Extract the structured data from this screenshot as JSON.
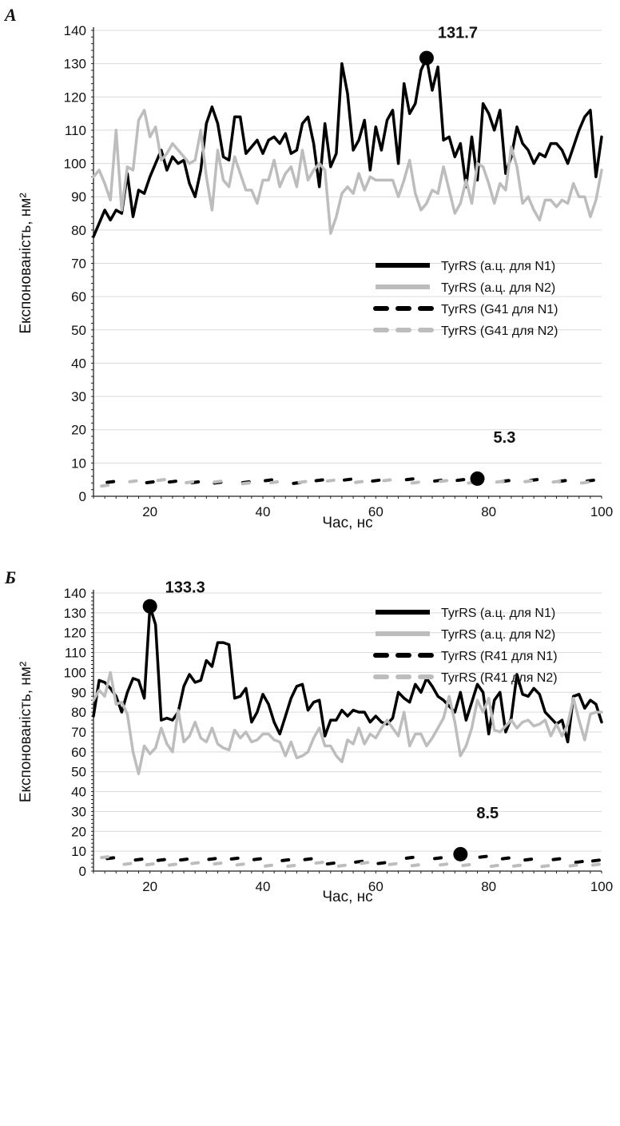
{
  "colors": {
    "n1": "#000000",
    "n2": "#bdbdbd",
    "grid": "#d9d9d9",
    "axis": "#222222"
  },
  "chart_data": [
    {
      "panel": "А",
      "type": "line",
      "xlabel": "Час, нс",
      "ylabel": "Експонованість, нм²",
      "xlim": [
        10,
        100
      ],
      "ylim": [
        0,
        140
      ],
      "xticks": [
        20,
        40,
        60,
        80,
        100
      ],
      "yticks": [
        0,
        10,
        20,
        30,
        40,
        50,
        60,
        70,
        80,
        90,
        100,
        110,
        120,
        130,
        140
      ],
      "grid": true,
      "legend_position": "middle-right",
      "series": [
        {
          "name": "TyrRS (а.ц. для N1)",
          "style": "solid",
          "color": "#000000",
          "x": [
            10,
            12,
            13,
            14,
            15,
            16,
            17,
            18,
            19,
            20,
            21,
            22,
            23,
            24,
            25,
            26,
            27,
            28,
            29,
            30,
            31,
            32,
            33,
            34,
            35,
            36,
            37,
            38,
            39,
            40,
            41,
            42,
            43,
            44,
            45,
            46,
            47,
            48,
            49,
            50,
            51,
            52,
            53,
            54,
            55,
            56,
            57,
            58,
            59,
            60,
            61,
            62,
            63,
            64,
            65,
            66,
            67,
            68,
            69,
            70,
            71,
            72,
            73,
            74,
            75,
            76,
            77,
            78,
            79,
            80,
            81,
            82,
            83,
            84,
            85,
            86,
            87,
            88,
            89,
            90,
            91,
            92,
            93,
            94,
            95,
            96,
            97,
            98,
            99,
            100
          ],
          "y": [
            78,
            86,
            83,
            86,
            85,
            97,
            84,
            92,
            91,
            96,
            100,
            104,
            98,
            102,
            100,
            101,
            94,
            90,
            98,
            112,
            117,
            112,
            102,
            101,
            114,
            114,
            103,
            105,
            107,
            103,
            107,
            108,
            106,
            109,
            103,
            104,
            112,
            114,
            106,
            93,
            112,
            99,
            103,
            130,
            121,
            104,
            107,
            113,
            98,
            111,
            104,
            113,
            116,
            100,
            124,
            115,
            118,
            128,
            131.7,
            122,
            129,
            107,
            108,
            102,
            106,
            93,
            108,
            95,
            118,
            115,
            110,
            116,
            97,
            102,
            111,
            106,
            104,
            100,
            103,
            102,
            106,
            106,
            104,
            100,
            105,
            110,
            114,
            116,
            96,
            108
          ]
        },
        {
          "name": "TyrRS (а.ц. для N2)",
          "style": "solid",
          "color": "#bdbdbd",
          "x": [
            10,
            11,
            12,
            13,
            14,
            15,
            16,
            17,
            18,
            19,
            20,
            21,
            22,
            23,
            24,
            25,
            26,
            27,
            28,
            29,
            30,
            31,
            32,
            33,
            34,
            35,
            36,
            37,
            38,
            39,
            40,
            41,
            42,
            43,
            44,
            45,
            46,
            47,
            48,
            49,
            50,
            51,
            52,
            53,
            54,
            55,
            56,
            57,
            58,
            59,
            60,
            61,
            62,
            63,
            64,
            65,
            66,
            67,
            68,
            69,
            70,
            71,
            72,
            73,
            74,
            75,
            76,
            77,
            78,
            79,
            80,
            81,
            82,
            83,
            84,
            85,
            86,
            87,
            88,
            89,
            90,
            91,
            92,
            93,
            94,
            95,
            96,
            97,
            98,
            99,
            100
          ],
          "y": [
            96,
            98,
            94,
            89,
            110,
            86,
            99,
            98,
            113,
            116,
            108,
            111,
            101,
            103,
            106,
            104,
            102,
            100,
            101,
            110,
            96,
            86,
            104,
            95,
            93,
            102,
            97,
            92,
            92,
            88,
            95,
            95,
            101,
            93,
            97,
            99,
            93,
            104,
            95,
            98,
            100,
            98,
            79,
            84,
            91,
            93,
            91,
            97,
            92,
            96,
            95,
            95,
            95,
            95,
            90,
            95,
            101,
            91,
            86,
            88,
            92,
            91,
            99,
            92,
            85,
            88,
            95,
            88,
            100,
            99,
            94,
            88,
            94,
            92,
            105,
            99,
            88,
            90,
            86,
            83,
            89,
            89,
            87,
            89,
            88,
            94,
            90,
            90,
            84,
            89,
            98
          ]
        },
        {
          "name": "TyrRS (G41 для N1)",
          "style": "dashed",
          "color": "#000000",
          "x": [
            13,
            20,
            24,
            28,
            32,
            37,
            41,
            46,
            50,
            55,
            60,
            66,
            71,
            75,
            78,
            83,
            88,
            93,
            98
          ],
          "y": [
            4.3,
            4.2,
            4.4,
            4.2,
            4.1,
            4.2,
            4.8,
            4.0,
            4.8,
            5.0,
            4.7,
            5.1,
            4.7,
            4.9,
            5.3,
            4.6,
            4.9,
            4.6,
            4.7
          ]
        },
        {
          "name": "TyrRS (G41 для N2)",
          "style": "dashed",
          "color": "#bdbdbd",
          "x": [
            12,
            17,
            22,
            27,
            32,
            37,
            42,
            47,
            52,
            57,
            62,
            67,
            72,
            77,
            82,
            87,
            92,
            97
          ],
          "y": [
            3.2,
            4.5,
            4.9,
            4.2,
            4.4,
            3.9,
            4.2,
            4.3,
            4.7,
            4.3,
            4.8,
            4.1,
            4.6,
            4.1,
            4.4,
            4.5,
            4.4,
            4.1
          ]
        }
      ],
      "annotations": [
        {
          "label": "131.7",
          "x": 69,
          "y": 131.7
        },
        {
          "label": "5.3",
          "x": 78,
          "y": 5.3
        }
      ]
    },
    {
      "panel": "Б",
      "type": "line",
      "xlabel": "Час, нс",
      "ylabel": "Експонованість, нм²",
      "xlim": [
        10,
        100
      ],
      "ylim": [
        0,
        140
      ],
      "xticks": [
        20,
        40,
        60,
        80,
        100
      ],
      "yticks": [
        0,
        10,
        20,
        30,
        40,
        50,
        60,
        70,
        80,
        90,
        100,
        110,
        120,
        130,
        140
      ],
      "grid": true,
      "legend_position": "top-right",
      "series": [
        {
          "name": "TyrRS (а.ц. для N1)",
          "style": "solid",
          "color": "#000000",
          "x": [
            10,
            11,
            12,
            13,
            14,
            15,
            16,
            17,
            18,
            19,
            20,
            21,
            22,
            23,
            24,
            25,
            26,
            27,
            28,
            29,
            30,
            31,
            32,
            33,
            34,
            35,
            36,
            37,
            38,
            39,
            40,
            41,
            42,
            43,
            44,
            45,
            46,
            47,
            48,
            49,
            50,
            51,
            52,
            53,
            54,
            55,
            56,
            57,
            58,
            59,
            60,
            61,
            62,
            63,
            64,
            65,
            66,
            67,
            68,
            69,
            70,
            71,
            72,
            73,
            74,
            75,
            76,
            77,
            78,
            79,
            80,
            81,
            82,
            83,
            84,
            85,
            86,
            87,
            88,
            89,
            90,
            91,
            92,
            93,
            94,
            95,
            96,
            97,
            98,
            99,
            100
          ],
          "y": [
            78,
            96,
            95,
            92,
            88,
            80,
            90,
            97,
            96,
            87,
            133.3,
            124,
            76,
            77,
            76,
            80,
            93,
            99,
            95,
            96,
            106,
            103,
            115,
            115,
            114,
            87,
            88,
            92,
            75,
            80,
            89,
            84,
            75,
            69,
            78,
            87,
            93,
            94,
            81,
            85,
            86,
            68,
            76,
            76,
            81,
            78,
            81,
            80,
            80,
            75,
            78,
            75,
            74,
            77,
            90,
            87,
            85,
            94,
            90,
            97,
            93,
            88,
            86,
            83,
            80,
            90,
            76,
            85,
            94,
            90,
            69,
            86,
            90,
            70,
            77,
            99,
            89,
            88,
            92,
            89,
            80,
            77,
            74,
            76,
            65,
            88,
            89,
            82,
            86,
            84,
            75
          ]
        },
        {
          "name": "TyrRS (а.ц. для N2)",
          "style": "solid",
          "color": "#bdbdbd",
          "x": [
            10,
            11,
            12,
            13,
            14,
            15,
            16,
            17,
            18,
            19,
            20,
            21,
            22,
            23,
            24,
            25,
            26,
            27,
            28,
            29,
            30,
            31,
            32,
            33,
            34,
            35,
            36,
            37,
            38,
            39,
            40,
            41,
            42,
            43,
            44,
            45,
            46,
            47,
            48,
            49,
            50,
            51,
            52,
            53,
            54,
            55,
            56,
            57,
            58,
            59,
            60,
            61,
            62,
            63,
            64,
            65,
            66,
            67,
            68,
            69,
            70,
            71,
            72,
            73,
            74,
            75,
            76,
            77,
            78,
            79,
            80,
            81,
            82,
            83,
            84,
            85,
            86,
            87,
            88,
            89,
            90,
            91,
            92,
            93,
            94,
            95,
            96,
            97,
            98,
            99,
            100
          ],
          "y": [
            86,
            91,
            88,
            100,
            84,
            85,
            79,
            60,
            49,
            63,
            59,
            62,
            72,
            64,
            60,
            81,
            65,
            68,
            75,
            67,
            65,
            72,
            64,
            62,
            61,
            71,
            67,
            70,
            65,
            66,
            69,
            69,
            66,
            65,
            58,
            65,
            57,
            58,
            60,
            67,
            72,
            63,
            63,
            58,
            55,
            66,
            64,
            72,
            64,
            69,
            67,
            72,
            76,
            72,
            68,
            80,
            63,
            69,
            69,
            63,
            67,
            72,
            77,
            88,
            75,
            58,
            63,
            72,
            86,
            80,
            87,
            71,
            70,
            73,
            76,
            72,
            75,
            76,
            73,
            74,
            76,
            68,
            74,
            68,
            74,
            87,
            76,
            66,
            79,
            80,
            80
          ]
        },
        {
          "name": "TyrRS (R41 для N1)",
          "style": "dashed",
          "color": "#000000",
          "x": [
            13,
            18,
            22,
            26,
            31,
            35,
            39,
            44,
            48,
            52,
            57,
            61,
            66,
            71,
            75,
            79,
            83,
            87,
            92,
            96,
            99
          ],
          "y": [
            6.5,
            5.8,
            5.6,
            5.8,
            6.1,
            6.3,
            6.0,
            5.5,
            6.0,
            3.8,
            4.7,
            4.0,
            6.7,
            6.5,
            8.5,
            7.2,
            6.4,
            5.8,
            6.0,
            4.6,
            5.3
          ]
        },
        {
          "name": "TyrRS (R41 для N2)",
          "style": "dashed",
          "color": "#bdbdbd",
          "x": [
            12,
            16,
            20,
            24,
            28,
            32,
            36,
            41,
            45,
            50,
            54,
            58,
            63,
            67,
            72,
            76,
            81,
            85,
            90,
            95,
            99
          ],
          "y": [
            7.0,
            3.6,
            3.4,
            3.2,
            4.0,
            3.8,
            3.3,
            2.7,
            2.6,
            4.2,
            2.7,
            4.1,
            3.5,
            2.9,
            3.3,
            3.0,
            2.6,
            2.7,
            2.5,
            2.8,
            3.2
          ]
        }
      ],
      "annotations": [
        {
          "label": "133.3",
          "x": 20,
          "y": 133.3
        },
        {
          "label": "8.5",
          "x": 75,
          "y": 8.5
        }
      ]
    }
  ]
}
